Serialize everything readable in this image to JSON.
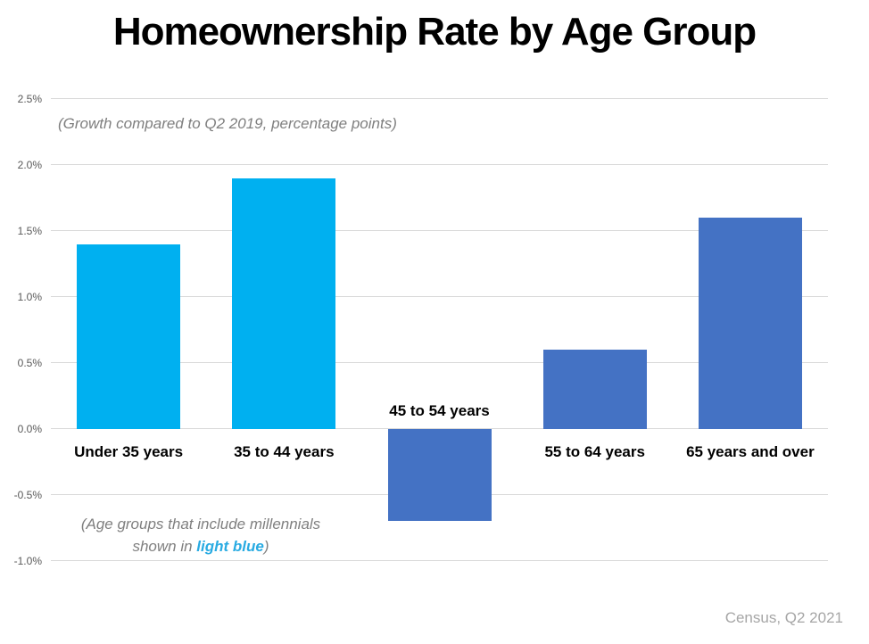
{
  "page": {
    "title": "Homeownership Rate by Age Group",
    "subtitle": "(Growth compared to Q2 2019, percentage points)",
    "annotation": {
      "line1": "(Age groups that include millennials",
      "line2_pre": "shown in ",
      "line2_highlight": "light blue",
      "line2_post": ")"
    },
    "source": "Census, Q2 2021"
  },
  "colors": {
    "millennial_bar": "#00B0F0",
    "other_bar": "#4472C4",
    "gridline": "#D9D9D9",
    "axis_label": "#595959",
    "subtitle_text": "#7F7F7F",
    "annotation_text": "#7F7F7F",
    "highlight_text": "#29ABE2",
    "source_text": "#A6A6A6",
    "category_label": "#000000"
  },
  "chart_data": {
    "type": "bar",
    "title": "Homeownership Rate by Age Group",
    "subtitle": "(Growth compared to Q2 2019, percentage points)",
    "categories": [
      "Under 35 years",
      "35 to 44 years",
      "45 to 54 years",
      "55 to 64 years",
      "65 years and over"
    ],
    "values": [
      1.4,
      1.9,
      -0.7,
      0.6,
      1.6
    ],
    "bar_colors": [
      "#00B0F0",
      "#00B0F0",
      "#4472C4",
      "#4472C4",
      "#4472C4"
    ],
    "unit": "percentage points vs Q2 2019",
    "ylim": [
      -1.0,
      2.5
    ],
    "ytick_step": 0.5,
    "ytick_labels": [
      "2.5%",
      "2.0%",
      "1.5%",
      "1.0%",
      "0.5%",
      "0.0%",
      "-0.5%",
      "-1.0%"
    ],
    "grid": true,
    "legend": "none",
    "color_meaning": "Age groups that include millennials shown in light blue",
    "source": "Census, Q2 2021"
  }
}
